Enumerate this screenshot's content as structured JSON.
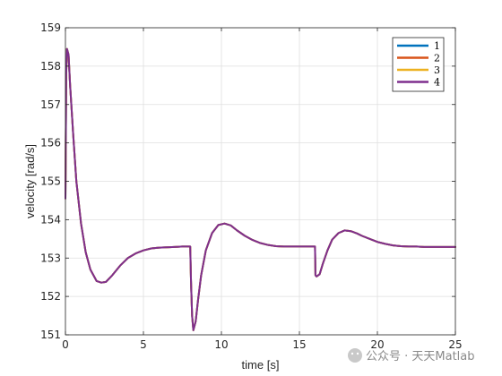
{
  "chart_data": {
    "type": "line",
    "title": "",
    "xlabel": "time [s]",
    "ylabel": "velocity [rad/s]",
    "xlim": [
      0,
      25
    ],
    "ylim": [
      151,
      159
    ],
    "xticks": [
      0,
      5,
      10,
      15,
      20,
      25
    ],
    "yticks": [
      151,
      152,
      153,
      154,
      155,
      156,
      157,
      158,
      159
    ],
    "grid": true,
    "legend_position": "top-right",
    "series": [
      {
        "name": "1",
        "color": "#0072BD",
        "x": [
          0,
          0.05,
          0.1,
          0.2,
          0.3,
          0.5,
          0.7,
          1.0,
          1.3,
          1.6,
          2.0,
          2.3,
          2.6,
          3.0,
          3.5,
          4.0,
          4.5,
          5.0,
          5.5,
          6.0,
          6.5,
          7.0,
          7.5,
          8.0,
          8.05,
          8.12,
          8.2,
          8.35,
          8.5,
          8.7,
          9.0,
          9.4,
          9.8,
          10.2,
          10.6,
          11.0,
          11.5,
          12.0,
          12.5,
          13.0,
          13.5,
          14.0,
          14.5,
          15.0,
          15.5,
          16.0,
          16.03,
          16.1,
          16.3,
          16.5,
          16.8,
          17.1,
          17.5,
          17.9,
          18.3,
          18.7,
          19.0,
          19.5,
          20.0,
          20.5,
          21.0,
          21.5,
          22.0,
          22.5,
          23.0,
          24.0,
          25.0
        ],
        "y": [
          154.55,
          157.8,
          158.45,
          158.3,
          157.5,
          156.2,
          155.0,
          153.9,
          153.15,
          152.7,
          152.4,
          152.36,
          152.38,
          152.55,
          152.8,
          153.0,
          153.12,
          153.2,
          153.25,
          153.27,
          153.28,
          153.29,
          153.3,
          153.3,
          152.4,
          151.5,
          151.12,
          151.35,
          151.9,
          152.55,
          153.2,
          153.65,
          153.86,
          153.9,
          153.85,
          153.72,
          153.58,
          153.47,
          153.39,
          153.34,
          153.31,
          153.3,
          153.3,
          153.3,
          153.3,
          153.3,
          152.55,
          152.52,
          152.58,
          152.85,
          153.2,
          153.48,
          153.65,
          153.72,
          153.7,
          153.64,
          153.58,
          153.5,
          153.42,
          153.37,
          153.33,
          153.31,
          153.3,
          153.3,
          153.29,
          153.29,
          153.29
        ]
      },
      {
        "name": "2",
        "color": "#D95319",
        "x": [
          0,
          0.05,
          0.1,
          0.2,
          0.3,
          0.5,
          0.7,
          1.0,
          1.3,
          1.6,
          2.0,
          2.3,
          2.6,
          3.0,
          3.5,
          4.0,
          4.5,
          5.0,
          5.5,
          6.0,
          6.5,
          7.0,
          7.5,
          8.0,
          8.05,
          8.12,
          8.2,
          8.35,
          8.5,
          8.7,
          9.0,
          9.4,
          9.8,
          10.2,
          10.6,
          11.0,
          11.5,
          12.0,
          12.5,
          13.0,
          13.5,
          14.0,
          14.5,
          15.0,
          15.5,
          16.0,
          16.03,
          16.1,
          16.3,
          16.5,
          16.8,
          17.1,
          17.5,
          17.9,
          18.3,
          18.7,
          19.0,
          19.5,
          20.0,
          20.5,
          21.0,
          21.5,
          22.0,
          22.5,
          23.0,
          24.0,
          25.0
        ],
        "y": [
          154.55,
          157.8,
          158.45,
          158.3,
          157.5,
          156.2,
          155.0,
          153.9,
          153.15,
          152.7,
          152.4,
          152.36,
          152.38,
          152.55,
          152.8,
          153.0,
          153.12,
          153.2,
          153.25,
          153.27,
          153.28,
          153.29,
          153.3,
          153.3,
          152.4,
          151.5,
          151.12,
          151.35,
          151.9,
          152.55,
          153.2,
          153.65,
          153.86,
          153.9,
          153.85,
          153.72,
          153.58,
          153.47,
          153.39,
          153.34,
          153.31,
          153.3,
          153.3,
          153.3,
          153.3,
          153.3,
          152.55,
          152.52,
          152.58,
          152.85,
          153.2,
          153.48,
          153.65,
          153.72,
          153.7,
          153.64,
          153.58,
          153.5,
          153.42,
          153.37,
          153.33,
          153.31,
          153.3,
          153.3,
          153.29,
          153.29,
          153.29
        ]
      },
      {
        "name": "3",
        "color": "#EDB120",
        "x": [
          0,
          0.05,
          0.1,
          0.2,
          0.3,
          0.5,
          0.7,
          1.0,
          1.3,
          1.6,
          2.0,
          2.3,
          2.6,
          3.0,
          3.5,
          4.0,
          4.5,
          5.0,
          5.5,
          6.0,
          6.5,
          7.0,
          7.5,
          8.0,
          8.05,
          8.12,
          8.2,
          8.35,
          8.5,
          8.7,
          9.0,
          9.4,
          9.8,
          10.2,
          10.6,
          11.0,
          11.5,
          12.0,
          12.5,
          13.0,
          13.5,
          14.0,
          14.5,
          15.0,
          15.5,
          16.0,
          16.03,
          16.1,
          16.3,
          16.5,
          16.8,
          17.1,
          17.5,
          17.9,
          18.3,
          18.7,
          19.0,
          19.5,
          20.0,
          20.5,
          21.0,
          21.5,
          22.0,
          22.5,
          23.0,
          24.0,
          25.0
        ],
        "y": [
          154.55,
          157.8,
          158.45,
          158.3,
          157.5,
          156.2,
          155.0,
          153.9,
          153.15,
          152.7,
          152.4,
          152.36,
          152.38,
          152.55,
          152.8,
          153.0,
          153.12,
          153.2,
          153.25,
          153.27,
          153.28,
          153.29,
          153.3,
          153.3,
          152.4,
          151.5,
          151.12,
          151.35,
          151.9,
          152.55,
          153.2,
          153.65,
          153.86,
          153.9,
          153.85,
          153.72,
          153.58,
          153.47,
          153.39,
          153.34,
          153.31,
          153.3,
          153.3,
          153.3,
          153.3,
          153.3,
          152.55,
          152.52,
          152.58,
          152.85,
          153.2,
          153.48,
          153.65,
          153.72,
          153.7,
          153.64,
          153.58,
          153.5,
          153.42,
          153.37,
          153.33,
          153.31,
          153.3,
          153.3,
          153.29,
          153.29,
          153.29
        ]
      },
      {
        "name": "4",
        "color": "#7E2F8E",
        "x": [
          0,
          0.05,
          0.1,
          0.2,
          0.3,
          0.5,
          0.7,
          1.0,
          1.3,
          1.6,
          2.0,
          2.3,
          2.6,
          3.0,
          3.5,
          4.0,
          4.5,
          5.0,
          5.5,
          6.0,
          6.5,
          7.0,
          7.5,
          8.0,
          8.05,
          8.12,
          8.2,
          8.35,
          8.5,
          8.7,
          9.0,
          9.4,
          9.8,
          10.2,
          10.6,
          11.0,
          11.5,
          12.0,
          12.5,
          13.0,
          13.5,
          14.0,
          14.5,
          15.0,
          15.5,
          16.0,
          16.03,
          16.1,
          16.3,
          16.5,
          16.8,
          17.1,
          17.5,
          17.9,
          18.3,
          18.7,
          19.0,
          19.5,
          20.0,
          20.5,
          21.0,
          21.5,
          22.0,
          22.5,
          23.0,
          24.0,
          25.0
        ],
        "y": [
          154.55,
          157.8,
          158.45,
          158.3,
          157.5,
          156.2,
          155.0,
          153.9,
          153.15,
          152.7,
          152.4,
          152.36,
          152.38,
          152.55,
          152.8,
          153.0,
          153.12,
          153.2,
          153.25,
          153.27,
          153.28,
          153.29,
          153.3,
          153.3,
          152.4,
          151.5,
          151.12,
          151.35,
          151.9,
          152.55,
          153.2,
          153.65,
          153.86,
          153.9,
          153.85,
          153.72,
          153.58,
          153.47,
          153.39,
          153.34,
          153.31,
          153.3,
          153.3,
          153.3,
          153.3,
          153.3,
          152.55,
          152.52,
          152.58,
          152.85,
          153.2,
          153.48,
          153.65,
          153.72,
          153.7,
          153.64,
          153.58,
          153.5,
          153.42,
          153.37,
          153.33,
          153.31,
          153.3,
          153.3,
          153.29,
          153.29,
          153.29
        ]
      }
    ]
  },
  "watermark": {
    "text": "公众号 · 天天Matlab",
    "icon": "wechat-icon"
  }
}
